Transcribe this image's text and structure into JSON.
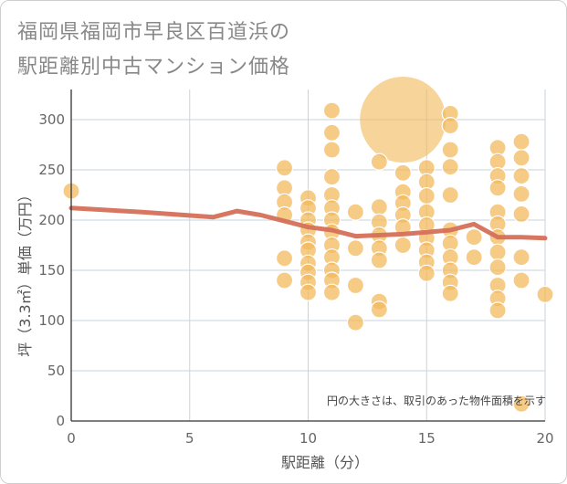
{
  "title_lines": [
    "福岡県福岡市早良区百道浜の",
    "駅距離別中古マンション価格"
  ],
  "chart_data": {
    "type": "scatter",
    "title": "福岡県福岡市早良区百道浜の駅距離別中古マンション価格",
    "xlabel": "駅距離（分）",
    "ylabel": "坪（3.3㎡）単価（万円）",
    "xlim": [
      0,
      20
    ],
    "ylim": [
      0,
      330
    ],
    "xticks": [
      0,
      5,
      10,
      15,
      20
    ],
    "yticks": [
      0,
      50,
      100,
      150,
      200,
      250,
      300
    ],
    "grid": true,
    "note": "円の大きさは、取引のあった物件面積を示す",
    "colors": {
      "bubble": "#f1b95c",
      "line": "#d5705a",
      "grid": "#c9d3de",
      "axis": "#333333"
    },
    "bubbles": [
      {
        "x": 0,
        "y": 229,
        "s": 1
      },
      {
        "x": 9,
        "y": 252,
        "s": 1
      },
      {
        "x": 9,
        "y": 232,
        "s": 1
      },
      {
        "x": 9,
        "y": 218,
        "s": 1
      },
      {
        "x": 9,
        "y": 205,
        "s": 1
      },
      {
        "x": 9,
        "y": 162,
        "s": 1
      },
      {
        "x": 9,
        "y": 140,
        "s": 1
      },
      {
        "x": 10,
        "y": 222,
        "s": 1
      },
      {
        "x": 10,
        "y": 212,
        "s": 1
      },
      {
        "x": 10,
        "y": 200,
        "s": 1
      },
      {
        "x": 10,
        "y": 190,
        "s": 1
      },
      {
        "x": 10,
        "y": 178,
        "s": 1
      },
      {
        "x": 10,
        "y": 170,
        "s": 1
      },
      {
        "x": 10,
        "y": 157,
        "s": 1
      },
      {
        "x": 10,
        "y": 148,
        "s": 1
      },
      {
        "x": 10,
        "y": 138,
        "s": 1
      },
      {
        "x": 10,
        "y": 128,
        "s": 1
      },
      {
        "x": 11,
        "y": 309,
        "s": 1
      },
      {
        "x": 11,
        "y": 287,
        "s": 1
      },
      {
        "x": 11,
        "y": 270,
        "s": 1
      },
      {
        "x": 11,
        "y": 243,
        "s": 1
      },
      {
        "x": 11,
        "y": 225,
        "s": 1
      },
      {
        "x": 11,
        "y": 212,
        "s": 1
      },
      {
        "x": 11,
        "y": 200,
        "s": 1
      },
      {
        "x": 11,
        "y": 188,
        "s": 1
      },
      {
        "x": 11,
        "y": 175,
        "s": 1
      },
      {
        "x": 11,
        "y": 163,
        "s": 1
      },
      {
        "x": 11,
        "y": 150,
        "s": 1
      },
      {
        "x": 11,
        "y": 140,
        "s": 1
      },
      {
        "x": 11,
        "y": 128,
        "s": 1
      },
      {
        "x": 12,
        "y": 208,
        "s": 1
      },
      {
        "x": 12,
        "y": 172,
        "s": 1
      },
      {
        "x": 12,
        "y": 135,
        "s": 1
      },
      {
        "x": 12,
        "y": 98,
        "s": 1
      },
      {
        "x": 13,
        "y": 258,
        "s": 1
      },
      {
        "x": 13,
        "y": 213,
        "s": 1
      },
      {
        "x": 13,
        "y": 198,
        "s": 1
      },
      {
        "x": 13,
        "y": 185,
        "s": 1
      },
      {
        "x": 13,
        "y": 172,
        "s": 1
      },
      {
        "x": 13,
        "y": 160,
        "s": 1
      },
      {
        "x": 13,
        "y": 119,
        "s": 1
      },
      {
        "x": 13,
        "y": 111,
        "s": 1
      },
      {
        "x": 14,
        "y": 300,
        "s": 6
      },
      {
        "x": 14,
        "y": 247,
        "s": 1
      },
      {
        "x": 14,
        "y": 228,
        "s": 1
      },
      {
        "x": 14,
        "y": 217,
        "s": 1
      },
      {
        "x": 14,
        "y": 205,
        "s": 1
      },
      {
        "x": 14,
        "y": 193,
        "s": 1
      },
      {
        "x": 14,
        "y": 175,
        "s": 1
      },
      {
        "x": 15,
        "y": 252,
        "s": 1
      },
      {
        "x": 15,
        "y": 238,
        "s": 1
      },
      {
        "x": 15,
        "y": 224,
        "s": 1
      },
      {
        "x": 15,
        "y": 208,
        "s": 1
      },
      {
        "x": 15,
        "y": 195,
        "s": 1
      },
      {
        "x": 15,
        "y": 182,
        "s": 1
      },
      {
        "x": 15,
        "y": 170,
        "s": 1
      },
      {
        "x": 15,
        "y": 158,
        "s": 1
      },
      {
        "x": 15,
        "y": 147,
        "s": 1
      },
      {
        "x": 16,
        "y": 306,
        "s": 1
      },
      {
        "x": 16,
        "y": 294,
        "s": 1
      },
      {
        "x": 16,
        "y": 270,
        "s": 1
      },
      {
        "x": 16,
        "y": 253,
        "s": 1
      },
      {
        "x": 16,
        "y": 225,
        "s": 1
      },
      {
        "x": 16,
        "y": 190,
        "s": 1
      },
      {
        "x": 16,
        "y": 177,
        "s": 1
      },
      {
        "x": 16,
        "y": 163,
        "s": 1
      },
      {
        "x": 16,
        "y": 150,
        "s": 1
      },
      {
        "x": 16,
        "y": 138,
        "s": 1
      },
      {
        "x": 16,
        "y": 127,
        "s": 1
      },
      {
        "x": 17,
        "y": 183,
        "s": 1
      },
      {
        "x": 17,
        "y": 163,
        "s": 1
      },
      {
        "x": 18,
        "y": 272,
        "s": 1
      },
      {
        "x": 18,
        "y": 258,
        "s": 1
      },
      {
        "x": 18,
        "y": 244,
        "s": 1
      },
      {
        "x": 18,
        "y": 232,
        "s": 1
      },
      {
        "x": 18,
        "y": 208,
        "s": 1
      },
      {
        "x": 18,
        "y": 196,
        "s": 1
      },
      {
        "x": 18,
        "y": 183,
        "s": 1
      },
      {
        "x": 18,
        "y": 168,
        "s": 1
      },
      {
        "x": 18,
        "y": 153,
        "s": 1
      },
      {
        "x": 18,
        "y": 135,
        "s": 1
      },
      {
        "x": 18,
        "y": 122,
        "s": 1
      },
      {
        "x": 18,
        "y": 110,
        "s": 1
      },
      {
        "x": 19,
        "y": 278,
        "s": 1
      },
      {
        "x": 19,
        "y": 262,
        "s": 1
      },
      {
        "x": 19,
        "y": 244,
        "s": 1
      },
      {
        "x": 19,
        "y": 226,
        "s": 1
      },
      {
        "x": 19,
        "y": 206,
        "s": 1
      },
      {
        "x": 19,
        "y": 163,
        "s": 1
      },
      {
        "x": 19,
        "y": 140,
        "s": 1
      },
      {
        "x": 19,
        "y": 17,
        "s": 1
      },
      {
        "x": 20,
        "y": 126,
        "s": 1
      }
    ],
    "trend_line": {
      "x": [
        0,
        3,
        6,
        7,
        8,
        9,
        10,
        11,
        12,
        13,
        14,
        15,
        16,
        17,
        18,
        19,
        20
      ],
      "y": [
        212,
        208,
        203,
        209,
        205,
        199,
        193,
        190,
        184,
        185,
        186,
        188,
        190,
        196,
        183,
        183,
        182
      ]
    }
  }
}
